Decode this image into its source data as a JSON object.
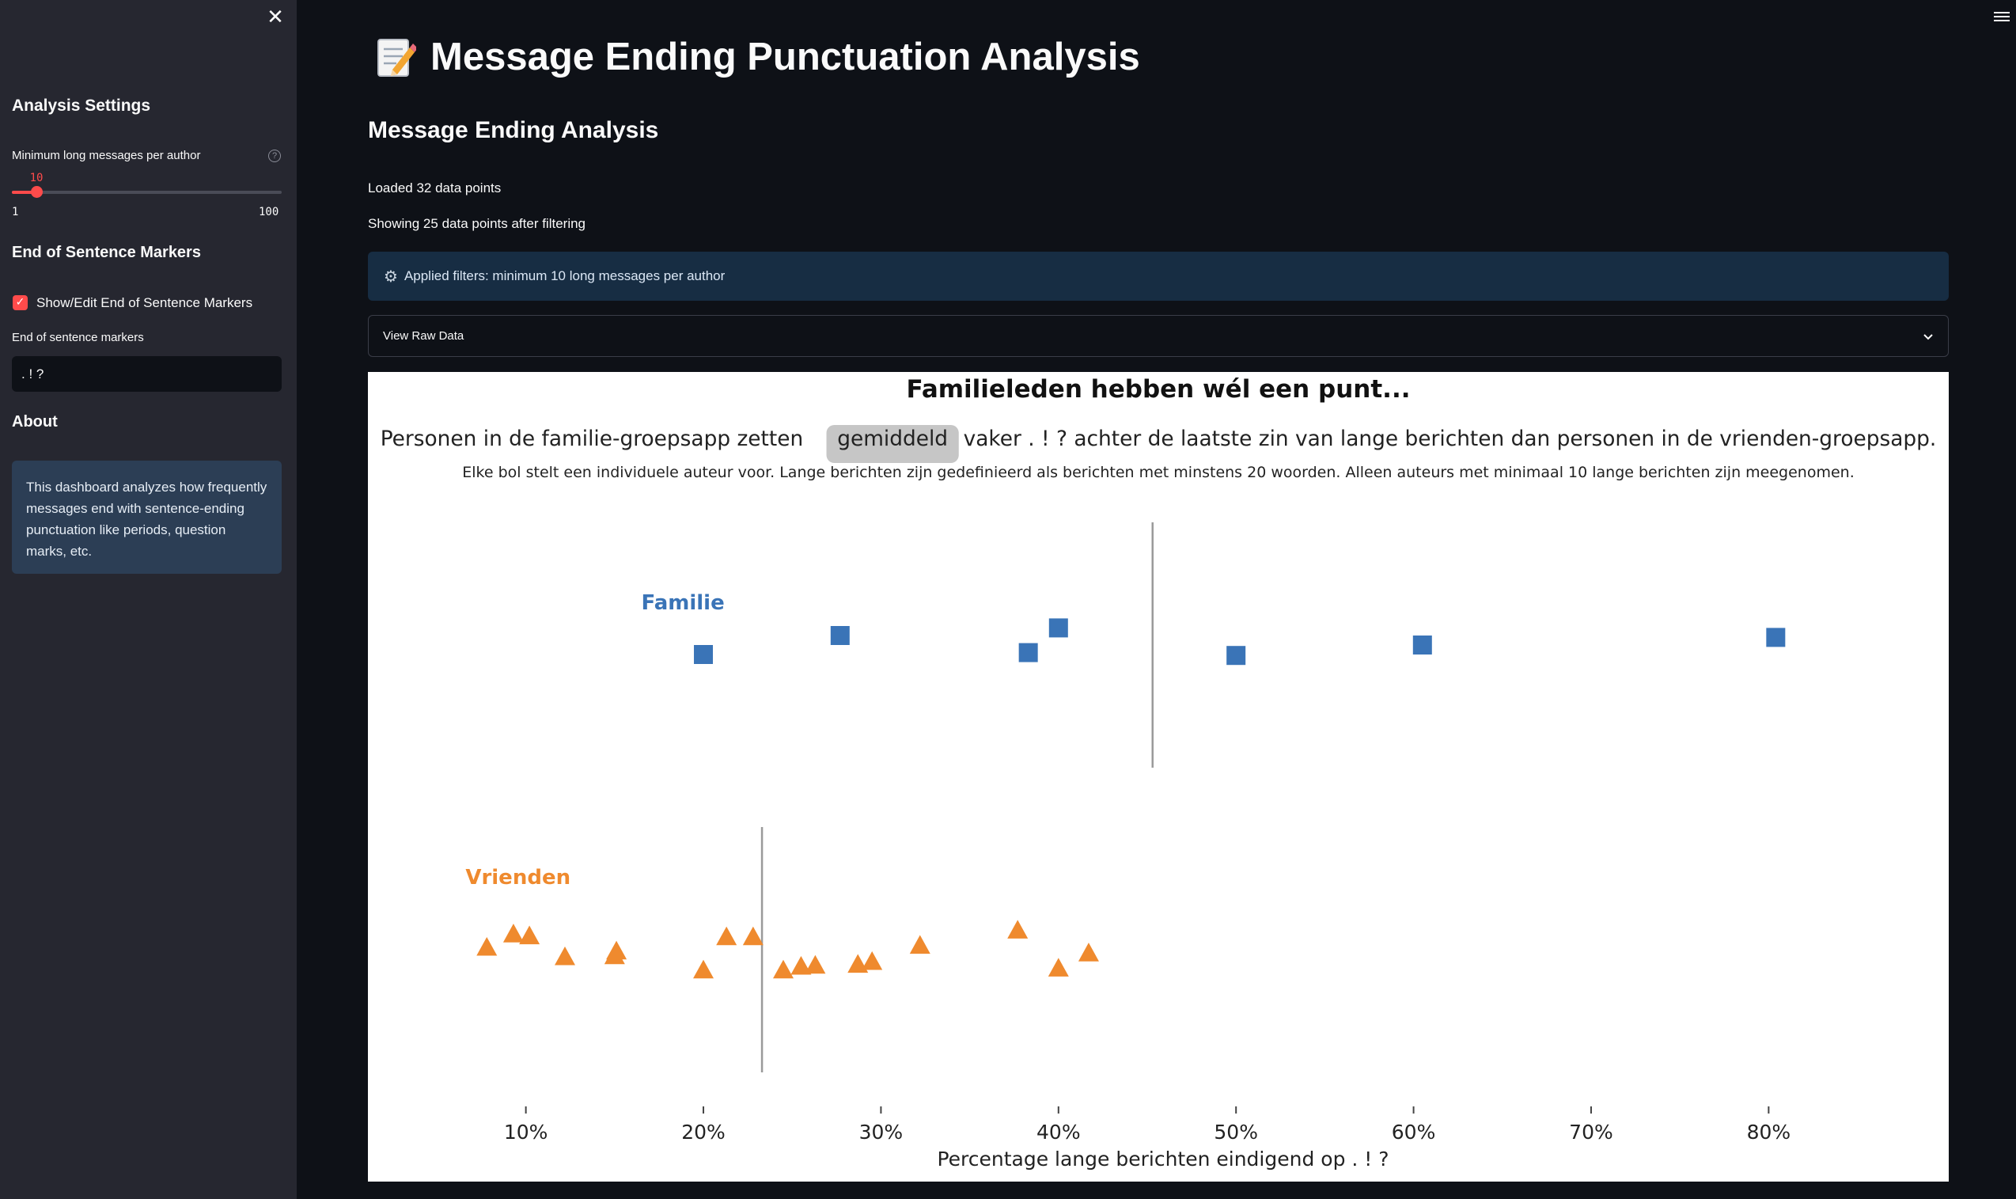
{
  "sidebar": {
    "close_icon": "close-icon",
    "analysis_settings_heading": "Analysis Settings",
    "slider": {
      "label": "Minimum long messages per author",
      "value": 10,
      "min": 1,
      "max": 100,
      "min_label": "1",
      "max_label": "100",
      "value_label": "10"
    },
    "markers_heading": "End of Sentence Markers",
    "checkbox_label": "Show/Edit End of Sentence Markers",
    "checkbox_checked": true,
    "markers_input_label": "End of sentence markers",
    "markers_input_value": ". ! ?",
    "about_heading": "About",
    "about_text": "This dashboard analyzes how frequently messages end with sentence-ending punctuation like periods, question marks, etc."
  },
  "main": {
    "title": "Message Ending Punctuation Analysis",
    "title_icon": "memo-icon",
    "subheader": "Message Ending Analysis",
    "loaded_text": "Loaded 32 data points",
    "showing_text": "Showing 25 data points after filtering",
    "filter_info": "Applied filters: minimum 10 long messages per author",
    "expander_label": "View Raw Data"
  },
  "chart_data": {
    "type": "scatter",
    "title": "Familieleden hebben wél een punt...",
    "subtitle_before": "Personen in de familie-groepsapp zetten",
    "subtitle_highlight": "gemiddeld",
    "subtitle_after": "vaker . ! ? achter de laatste zin van lange berichten dan personen in de vrienden-groepsapp.",
    "description": "Elke bol stelt een individuele auteur voor. Lange berichten zijn gedefinieerd als berichten met minstens 20 woorden. Alleen auteurs met minimaal 10 lange berichten zijn meegenomen.",
    "xlabel": "Percentage lange berichten eindigend op . ! ?",
    "xlim": [
      0.04,
      0.86
    ],
    "xticks": [
      0.1,
      0.2,
      0.3,
      0.4,
      0.5,
      0.6,
      0.7,
      0.8
    ],
    "xtick_labels": [
      "10%",
      "20%",
      "30%",
      "40%",
      "50%",
      "60%",
      "70%",
      "80%"
    ],
    "series": [
      {
        "name": "Familie",
        "color": "#3a74b7",
        "marker": "square",
        "mean": 0.453,
        "points": [
          {
            "x": 0.2,
            "jitter": -0.1
          },
          {
            "x": 0.277,
            "jitter": 0.1
          },
          {
            "x": 0.383,
            "jitter": -0.08
          },
          {
            "x": 0.4,
            "jitter": 0.18
          },
          {
            "x": 0.5,
            "jitter": -0.11
          },
          {
            "x": 0.605,
            "jitter": 0.0
          },
          {
            "x": 0.804,
            "jitter": 0.08
          }
        ]
      },
      {
        "name": "Vrienden",
        "color": "#ef8a2e",
        "marker": "triangle",
        "mean": 0.233,
        "points": [
          {
            "x": 0.078,
            "jitter": 0.02
          },
          {
            "x": 0.093,
            "jitter": 0.16
          },
          {
            "x": 0.102,
            "jitter": 0.14
          },
          {
            "x": 0.122,
            "jitter": -0.08
          },
          {
            "x": 0.15,
            "jitter": -0.07
          },
          {
            "x": 0.151,
            "jitter": -0.02
          },
          {
            "x": 0.2,
            "jitter": -0.22
          },
          {
            "x": 0.213,
            "jitter": 0.13
          },
          {
            "x": 0.228,
            "jitter": 0.13
          },
          {
            "x": 0.245,
            "jitter": -0.22
          },
          {
            "x": 0.255,
            "jitter": -0.18
          },
          {
            "x": 0.263,
            "jitter": -0.17
          },
          {
            "x": 0.287,
            "jitter": -0.16
          },
          {
            "x": 0.295,
            "jitter": -0.13
          },
          {
            "x": 0.322,
            "jitter": 0.04
          },
          {
            "x": 0.377,
            "jitter": 0.2
          },
          {
            "x": 0.4,
            "jitter": -0.2
          },
          {
            "x": 0.417,
            "jitter": -0.04
          }
        ]
      }
    ]
  }
}
